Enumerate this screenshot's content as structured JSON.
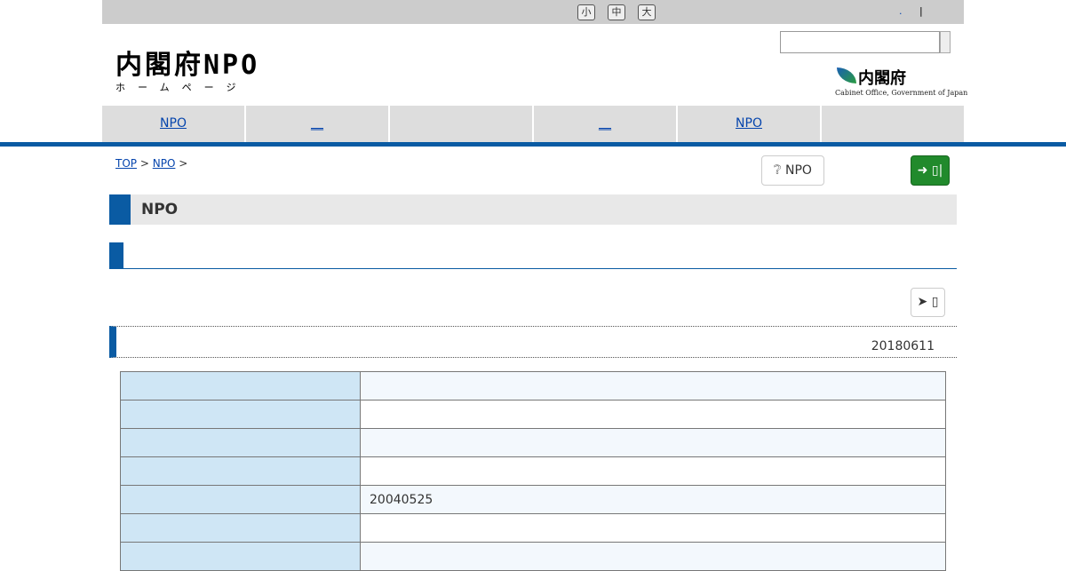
{
  "topbar": {
    "size_small": "小",
    "size_medium": "中",
    "size_large": "大",
    "link": ".",
    "separator": "|"
  },
  "logo": {
    "main": "内閣府NPO",
    "sub": "ホームページ"
  },
  "search": {
    "value": "",
    "placeholder": ""
  },
  "cabinet_office": {
    "jp": "内閣府",
    "en": "Cabinet Office, Government of Japan"
  },
  "nav": [
    {
      "label": "NPO"
    },
    {
      "label": "__"
    },
    {
      "label": ""
    },
    {
      "label": "__"
    },
    {
      "label": "NPO"
    },
    {
      "label": ""
    }
  ],
  "breadcrumb": {
    "top": "TOP",
    "npo": "NPO",
    "sep": ">"
  },
  "buttons": {
    "npo_help": "NPO",
    "login": "▯|",
    "arrow": "▯"
  },
  "headings": {
    "h1": "NPO",
    "h2": "",
    "h3_date": "20180611"
  },
  "table": {
    "rows": [
      {
        "k": "",
        "v": ""
      },
      {
        "k": "",
        "v": ""
      },
      {
        "k": "",
        "v": ""
      },
      {
        "k": "",
        "v": ""
      },
      {
        "k": "",
        "v": "20040525"
      },
      {
        "k": "",
        "v": ""
      },
      {
        "k": "",
        "v": ""
      }
    ]
  },
  "colors": {
    "accent": "#0a5ba3",
    "login_green": "#218a2c",
    "key_cell": "#cfe6f5"
  }
}
